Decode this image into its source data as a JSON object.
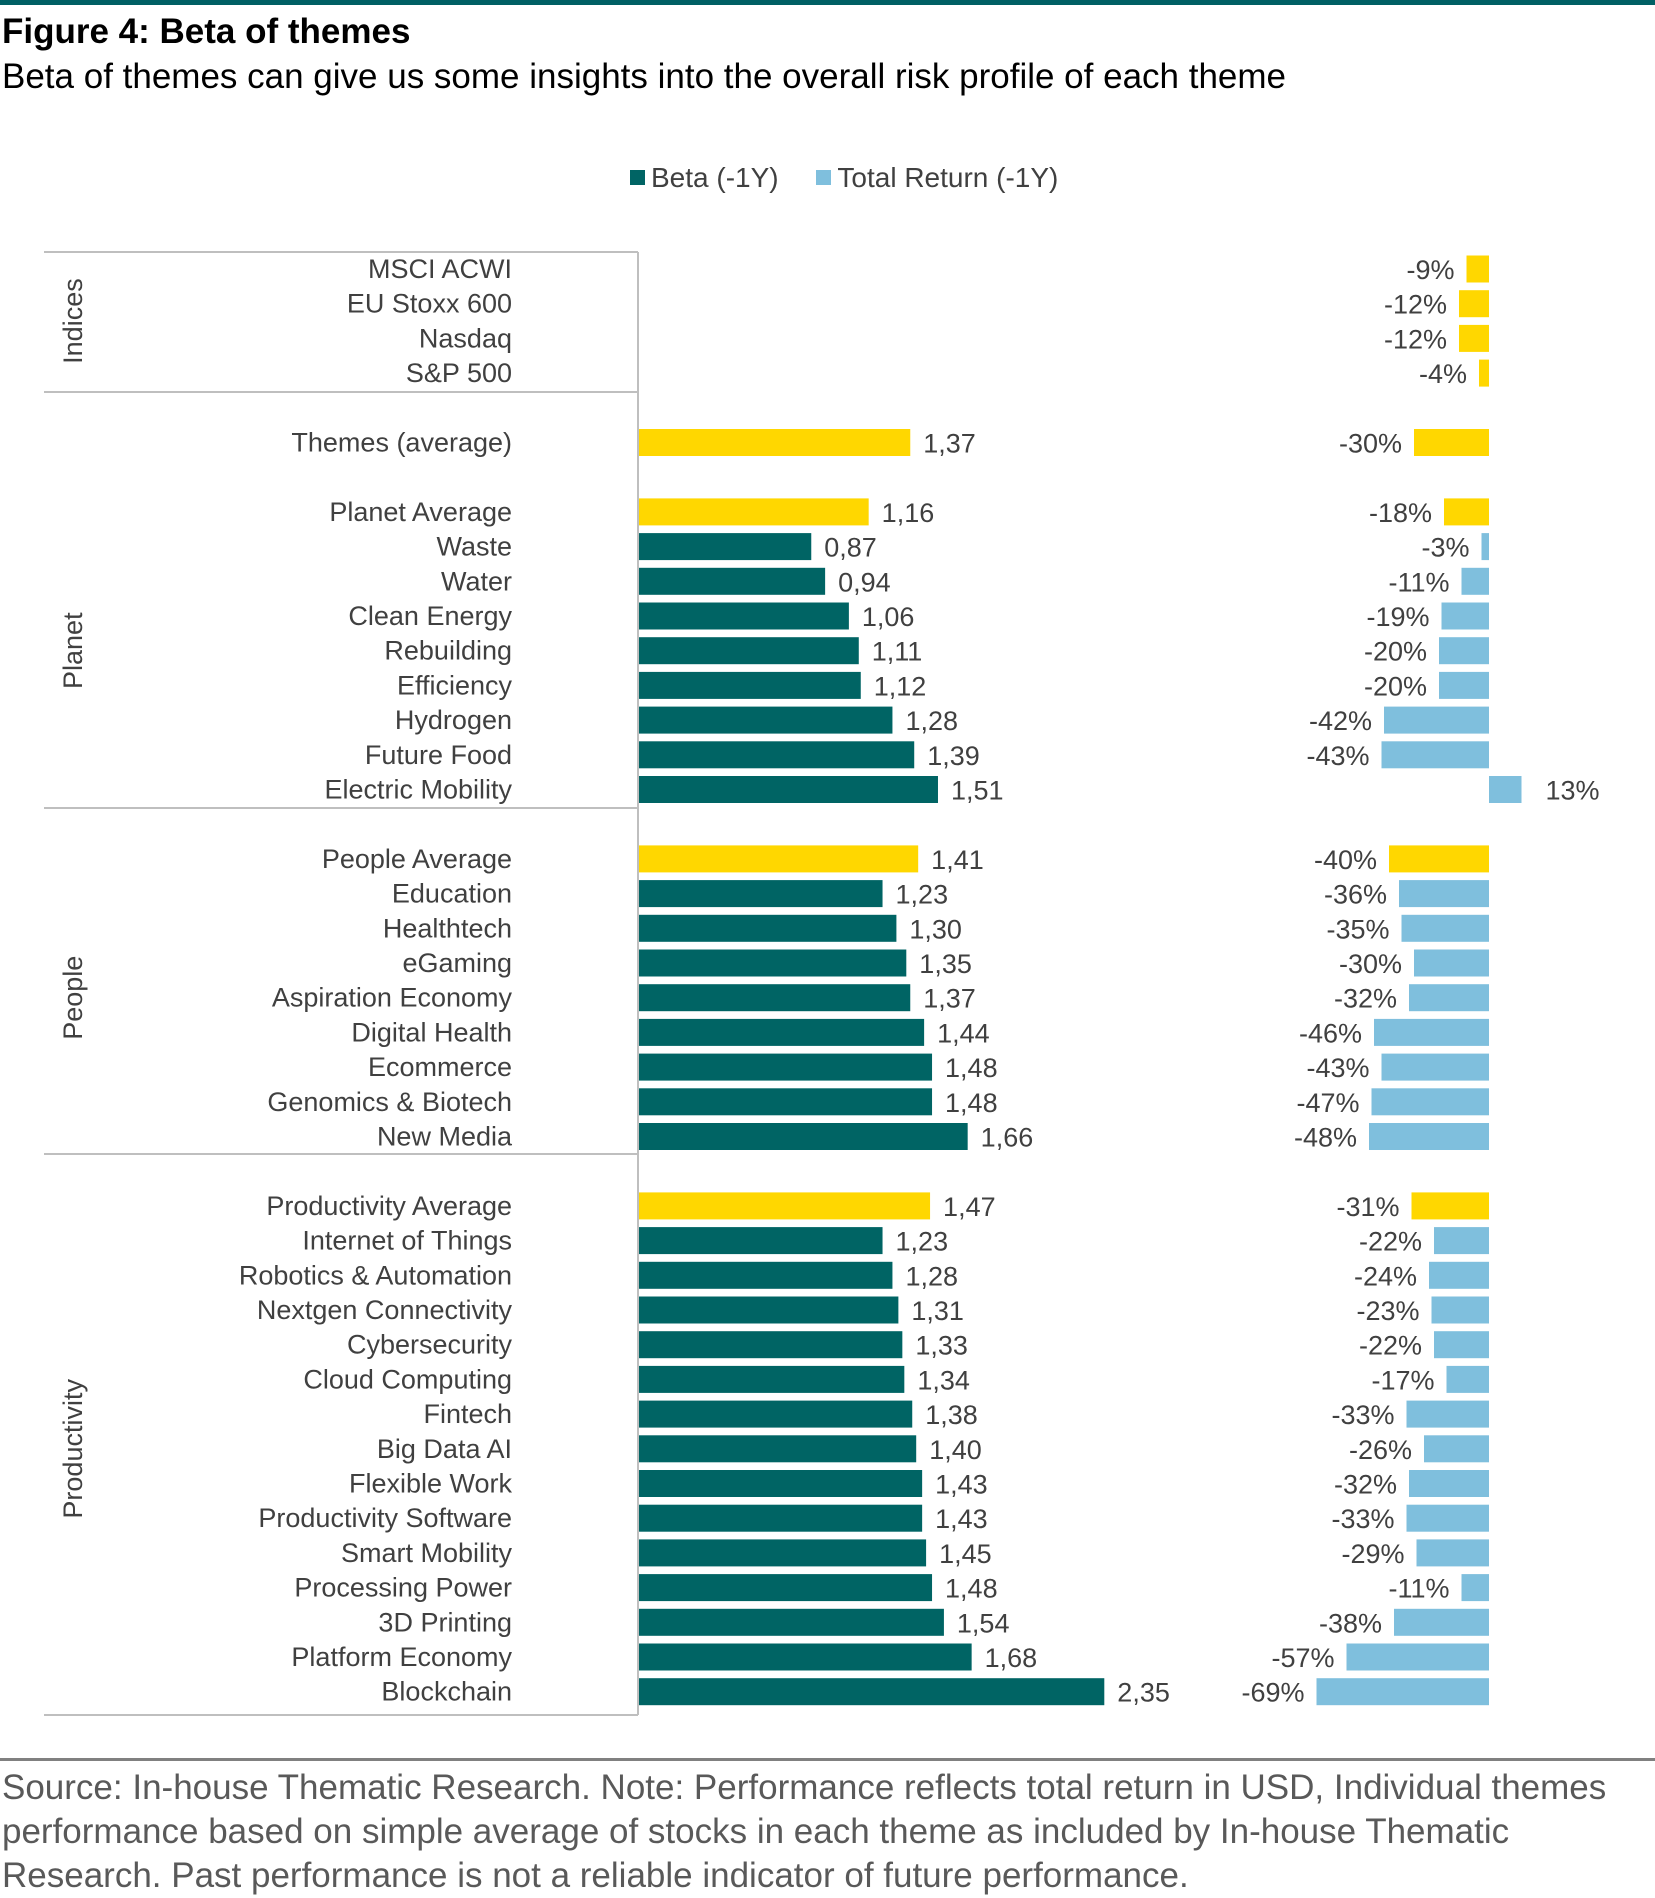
{
  "figure": {
    "title": "Figure 4: Beta of themes",
    "subtitle": "Beta of themes can give us some insights into the overall risk profile of each theme"
  },
  "source_note": "Source: In-house Thematic Research. Note: Performance reflects total return in USD, Individual themes performance based on simple average of stocks in each theme as included by In-house Thematic Research. Past performance is not a reliable indicator of future performance.",
  "colors": {
    "beta": "#006464",
    "total_return": "#7FBFDD",
    "highlight": "#FFD700",
    "axis": "#BFBFBF",
    "text": "#404040"
  },
  "chart_data": {
    "type": "bar",
    "orientation": "horizontal",
    "legend": {
      "placement": "top",
      "items": [
        {
          "label": "Beta (-1Y)",
          "color": "#006464"
        },
        {
          "label": "Total Return (-1Y)",
          "color": "#7FBFDD"
        }
      ]
    },
    "series": [
      {
        "name": "Beta (-1Y)"
      },
      {
        "name": "Total Return (-1Y)"
      }
    ],
    "groups": [
      {
        "name": "Indices",
        "rows": [
          {
            "label": "MSCI ACWI",
            "beta": null,
            "total_return": -9,
            "highlight": true
          },
          {
            "label": "EU Stoxx 600",
            "beta": null,
            "total_return": -12,
            "highlight": true
          },
          {
            "label": "Nasdaq",
            "beta": null,
            "total_return": -12,
            "highlight": true
          },
          {
            "label": "S&P 500",
            "beta": null,
            "total_return": -4,
            "highlight": true
          }
        ]
      },
      {
        "name": "",
        "rows": [
          {
            "label": "Themes (average)",
            "beta": 1.37,
            "total_return": -30,
            "highlight": true
          }
        ]
      },
      {
        "name": "Planet",
        "rows": [
          {
            "label": "Planet Average",
            "beta": 1.16,
            "total_return": -18,
            "highlight": true
          },
          {
            "label": "Waste",
            "beta": 0.87,
            "total_return": -3,
            "highlight": false
          },
          {
            "label": "Water",
            "beta": 0.94,
            "total_return": -11,
            "highlight": false
          },
          {
            "label": "Clean Energy",
            "beta": 1.06,
            "total_return": -19,
            "highlight": false
          },
          {
            "label": "Rebuilding",
            "beta": 1.11,
            "total_return": -20,
            "highlight": false
          },
          {
            "label": "Efficiency",
            "beta": 1.12,
            "total_return": -20,
            "highlight": false
          },
          {
            "label": "Hydrogen",
            "beta": 1.28,
            "total_return": -42,
            "highlight": false
          },
          {
            "label": "Future Food",
            "beta": 1.39,
            "total_return": -43,
            "highlight": false
          },
          {
            "label": "Electric Mobility",
            "beta": 1.51,
            "total_return": 13,
            "highlight": false
          }
        ]
      },
      {
        "name": "People",
        "rows": [
          {
            "label": "People Average",
            "beta": 1.41,
            "total_return": -40,
            "highlight": true
          },
          {
            "label": "Education",
            "beta": 1.23,
            "total_return": -36,
            "highlight": false
          },
          {
            "label": "Healthtech",
            "beta": 1.3,
            "total_return": -35,
            "highlight": false
          },
          {
            "label": "eGaming",
            "beta": 1.35,
            "total_return": -30,
            "highlight": false
          },
          {
            "label": "Aspiration Economy",
            "beta": 1.37,
            "total_return": -32,
            "highlight": false
          },
          {
            "label": "Digital Health",
            "beta": 1.44,
            "total_return": -46,
            "highlight": false
          },
          {
            "label": "Ecommerce",
            "beta": 1.48,
            "total_return": -43,
            "highlight": false
          },
          {
            "label": "Genomics & Biotech",
            "beta": 1.48,
            "total_return": -47,
            "highlight": false
          },
          {
            "label": "New Media",
            "beta": 1.66,
            "total_return": -48,
            "highlight": false
          }
        ]
      },
      {
        "name": "Productivity",
        "rows": [
          {
            "label": "Productivity Average",
            "beta": 1.47,
            "total_return": -31,
            "highlight": true
          },
          {
            "label": "Internet of Things",
            "beta": 1.23,
            "total_return": -22,
            "highlight": false
          },
          {
            "label": "Robotics & Automation",
            "beta": 1.28,
            "total_return": -24,
            "highlight": false
          },
          {
            "label": "Nextgen Connectivity",
            "beta": 1.31,
            "total_return": -23,
            "highlight": false
          },
          {
            "label": "Cybersecurity",
            "beta": 1.33,
            "total_return": -22,
            "highlight": false
          },
          {
            "label": "Cloud Computing",
            "beta": 1.34,
            "total_return": -17,
            "highlight": false
          },
          {
            "label": "Fintech",
            "beta": 1.38,
            "total_return": -33,
            "highlight": false
          },
          {
            "label": "Big Data AI",
            "beta": 1.4,
            "total_return": -26,
            "highlight": false
          },
          {
            "label": "Flexible Work",
            "beta": 1.43,
            "total_return": -32,
            "highlight": false
          },
          {
            "label": "Productivity Software",
            "beta": 1.43,
            "total_return": -33,
            "highlight": false
          },
          {
            "label": "Smart Mobility",
            "beta": 1.45,
            "total_return": -29,
            "highlight": false
          },
          {
            "label": "Processing Power",
            "beta": 1.48,
            "total_return": -11,
            "highlight": false
          },
          {
            "label": "3D Printing",
            "beta": 1.54,
            "total_return": -38,
            "highlight": false
          },
          {
            "label": "Platform Economy",
            "beta": 1.68,
            "total_return": -57,
            "highlight": false
          },
          {
            "label": "Blockchain",
            "beta": 2.35,
            "total_return": -69,
            "highlight": false
          }
        ]
      }
    ],
    "beta_label_format": "decimal-comma",
    "return_label_format": "percent"
  }
}
